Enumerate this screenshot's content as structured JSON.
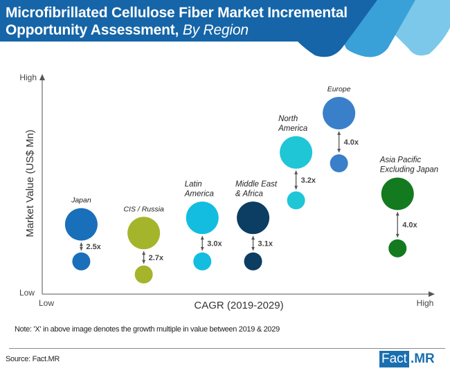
{
  "header": {
    "title_line1": "Microfibrillated Cellulose Fiber Market Incremental",
    "title_line2": "Opportunity Assessment,",
    "title_suffix": "By Region",
    "colors": {
      "primary": "#1565a8",
      "mid": "#3aa0d8",
      "light": "#7cc8ea"
    }
  },
  "chart_data": {
    "type": "scatter",
    "subtype": "bubble-pairs",
    "title": "Microfibrillated Cellulose Fiber Market Incremental Opportunity Assessment, By Region",
    "xlabel": "CAGR (2019-2029)",
    "ylabel": "Market Value (US$ Mn)",
    "x_ticks": {
      "low": "Low",
      "high": "High"
    },
    "y_ticks": {
      "low": "Low",
      "high": "High"
    },
    "xlim": [
      0,
      100
    ],
    "ylim": [
      0,
      100
    ],
    "grid": false,
    "legend": "none",
    "series": [
      {
        "name": "Japan",
        "label_lines": [
          "Japan"
        ],
        "color": "#1a6fba",
        "cagr": 10,
        "value_2029": 32,
        "value_2019": 15,
        "multiple": "2.5x"
      },
      {
        "name": "CIS / Russia",
        "label_lines": [
          "CIS / Russia"
        ],
        "color": "#a4b52c",
        "cagr": 26,
        "value_2029": 28,
        "value_2019": 9,
        "multiple": "2.7x"
      },
      {
        "name": "Latin America",
        "label_lines": [
          "Latin",
          "America"
        ],
        "color": "#12bde0",
        "cagr": 41,
        "value_2029": 35,
        "value_2019": 15,
        "multiple": "3.0x"
      },
      {
        "name": "Middle East & Africa",
        "label_lines": [
          "Middle East",
          "& Africa"
        ],
        "color": "#0c3d62",
        "cagr": 54,
        "value_2029": 35,
        "value_2019": 15,
        "multiple": "3.1x"
      },
      {
        "name": "North America",
        "label_lines": [
          "North",
          "America"
        ],
        "color": "#1fc6d6",
        "cagr": 65,
        "value_2029": 65,
        "value_2019": 43,
        "multiple": "3.2x"
      },
      {
        "name": "Europe",
        "label_lines": [
          "Europe"
        ],
        "color": "#3a7fca",
        "cagr": 76,
        "value_2029": 83,
        "value_2019": 60,
        "multiple": "4.0x"
      },
      {
        "name": "Asia Pacific Excluding Japan",
        "label_lines": [
          "Asia Pacific",
          "Excluding Japan"
        ],
        "color": "#137a20",
        "cagr": 91,
        "value_2029": 46,
        "value_2019": 21,
        "multiple": "4.0x"
      }
    ],
    "note": "Note: 'X' in above image denotes the growth multiple in value between 2019 & 2029"
  },
  "footer": {
    "note": "Note: 'X' in above image denotes the growth multiple in value between 2019 & 2029",
    "source": "Source: Fact.MR",
    "logo_fact": "Fact",
    "logo_mr": ".MR"
  }
}
